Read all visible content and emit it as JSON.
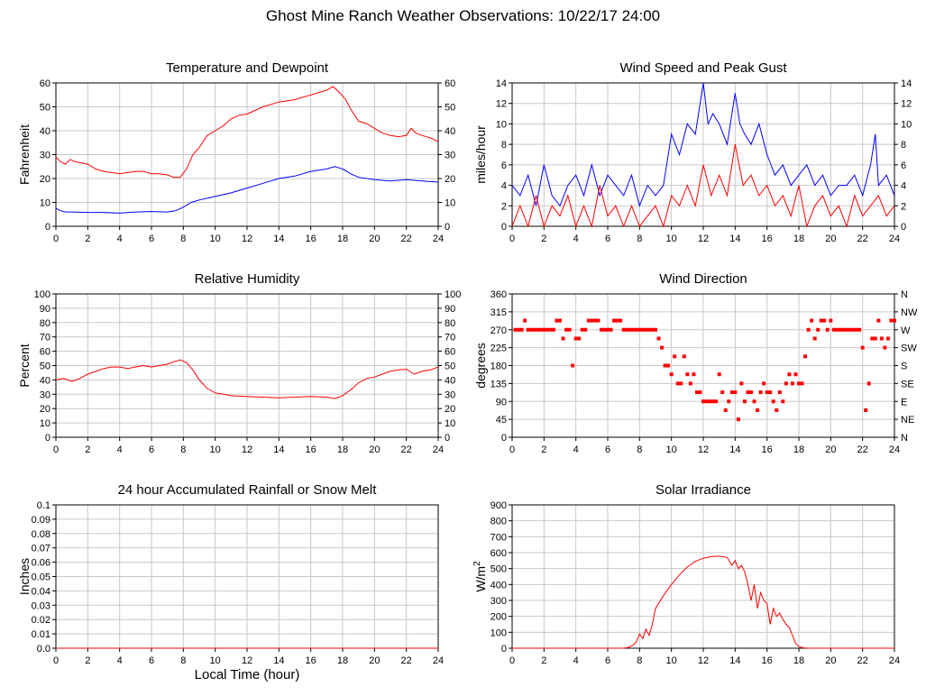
{
  "title": "Ghost Mine Ranch Weather Observations: 10/22/17 24:00",
  "colors": {
    "primary": "#ff0000",
    "secondary": "#0000ff",
    "grid": "#c8c8c8",
    "axis": "#000000"
  },
  "chart_data": [
    {
      "id": "temperature",
      "type": "line",
      "title": "Temperature and Dewpoint",
      "xlabel": "",
      "ylabel": "Fahrenheit",
      "xlim": [
        0,
        24
      ],
      "ylim": [
        0,
        60
      ],
      "xticks": [
        0,
        2,
        4,
        6,
        8,
        10,
        12,
        14,
        16,
        18,
        20,
        22,
        24
      ],
      "yticks": [
        0,
        10,
        20,
        30,
        40,
        50,
        60
      ],
      "yticks_right": [
        0,
        10,
        20,
        30,
        40,
        50,
        60
      ],
      "grid": true,
      "series": [
        {
          "color": "#ff0000",
          "x": [
            0,
            0.3,
            0.6,
            0.9,
            1.2,
            1.6,
            2.0,
            2.5,
            3.0,
            3.5,
            4.0,
            4.5,
            5.0,
            5.5,
            6.0,
            6.5,
            7.0,
            7.4,
            7.8,
            8.2,
            8.6,
            9.0,
            9.5,
            10.0,
            10.5,
            11.0,
            11.5,
            12.0,
            12.5,
            13.0,
            13.5,
            14.0,
            14.5,
            15.0,
            15.5,
            16.0,
            16.5,
            17.0,
            17.4,
            17.8,
            18.2,
            18.6,
            19.0,
            19.5,
            20.0,
            20.5,
            21.0,
            21.5,
            22.0,
            22.3,
            22.6,
            23.0,
            23.5,
            24.0
          ],
          "y": [
            29,
            27,
            26,
            28,
            27,
            26.5,
            26,
            24,
            23,
            22.5,
            22,
            22.5,
            23,
            23,
            22,
            22,
            21.5,
            20.5,
            20.5,
            24,
            30,
            33,
            38,
            40,
            42,
            45,
            46.5,
            47,
            48.5,
            50,
            51,
            52,
            52.5,
            53,
            54,
            55,
            56,
            57,
            58.5,
            56,
            53,
            48,
            44,
            43,
            41,
            39,
            38,
            37.5,
            38,
            41,
            39,
            38,
            37,
            35.5
          ]
        },
        {
          "color": "#0000ff",
          "x": [
            0,
            0.3,
            0.6,
            1.0,
            2.0,
            3.0,
            4.0,
            5.0,
            6.0,
            7.0,
            7.5,
            8.0,
            8.5,
            9.0,
            10.0,
            11.0,
            12.0,
            13.0,
            14.0,
            15.0,
            16.0,
            17.0,
            17.5,
            18.0,
            18.5,
            19.0,
            20.0,
            21.0,
            22.0,
            23.0,
            24.0
          ],
          "y": [
            7.5,
            6.5,
            6,
            6,
            5.8,
            5.8,
            5.5,
            6,
            6.2,
            6,
            6.5,
            8,
            10,
            11,
            12.5,
            14,
            16,
            18,
            20,
            21,
            23,
            24,
            25,
            24,
            22,
            20.5,
            19.5,
            19,
            19.5,
            19,
            18.5
          ]
        }
      ]
    },
    {
      "id": "wind-speed",
      "type": "line",
      "title": "Wind Speed and Peak Gust",
      "xlabel": "",
      "ylabel": "miles/hour",
      "xlim": [
        0,
        24
      ],
      "ylim": [
        0,
        14
      ],
      "xticks": [
        0,
        2,
        4,
        6,
        8,
        10,
        12,
        14,
        16,
        18,
        20,
        22,
        24
      ],
      "yticks": [
        0,
        2,
        4,
        6,
        8,
        10,
        12,
        14
      ],
      "yticks_right": [
        0,
        2,
        4,
        6,
        8,
        10,
        12,
        14
      ],
      "grid": true,
      "series": [
        {
          "color": "#0000ff",
          "x": [
            0,
            0.5,
            1.0,
            1.5,
            2.0,
            2.5,
            3.0,
            3.5,
            4.0,
            4.5,
            5.0,
            5.5,
            6.0,
            6.5,
            7.0,
            7.5,
            8.0,
            8.5,
            9.0,
            9.5,
            10.0,
            10.5,
            11.0,
            11.5,
            12.0,
            12.3,
            12.6,
            13.0,
            13.5,
            14.0,
            14.3,
            14.6,
            15.0,
            15.5,
            16.0,
            16.5,
            17.0,
            17.5,
            18.0,
            18.5,
            19.0,
            19.5,
            20.0,
            20.5,
            21.0,
            21.5,
            22.0,
            22.5,
            22.8,
            23.0,
            23.5,
            24.0
          ],
          "y": [
            4,
            3,
            5,
            2,
            6,
            3,
            2,
            4,
            5,
            3,
            6,
            3,
            5,
            4,
            3,
            5,
            2,
            4,
            3,
            4,
            9,
            7,
            10,
            9,
            14,
            10,
            11,
            10,
            8,
            13,
            10,
            9,
            8,
            10,
            7,
            5,
            6,
            4,
            5,
            6,
            4,
            5,
            3,
            4,
            4,
            5,
            3,
            6,
            9,
            4,
            5,
            3
          ]
        },
        {
          "color": "#ff0000",
          "x": [
            0,
            0.5,
            1.0,
            1.5,
            2.0,
            2.5,
            3.0,
            3.5,
            4.0,
            4.5,
            5.0,
            5.5,
            6.0,
            6.5,
            7.0,
            7.5,
            8.0,
            8.5,
            9.0,
            9.5,
            10.0,
            10.5,
            11.0,
            11.5,
            12.0,
            12.5,
            13.0,
            13.5,
            14.0,
            14.5,
            15.0,
            15.5,
            16.0,
            16.5,
            17.0,
            17.5,
            18.0,
            18.5,
            19.0,
            19.5,
            20.0,
            20.5,
            21.0,
            21.5,
            22.0,
            22.5,
            23.0,
            23.5,
            24.0
          ],
          "y": [
            0,
            2,
            0,
            3,
            0,
            2,
            1,
            3,
            0,
            2,
            0,
            4,
            1,
            2,
            0,
            2,
            0,
            1,
            2,
            0,
            3,
            2,
            4,
            2,
            6,
            3,
            5,
            3,
            8,
            4,
            5,
            3,
            4,
            2,
            3,
            1,
            4,
            0,
            2,
            3,
            1,
            2,
            0,
            3,
            1,
            2,
            3,
            1,
            2
          ]
        }
      ]
    },
    {
      "id": "humidity",
      "type": "line",
      "title": "Relative Humidity",
      "xlabel": "",
      "ylabel": "Percent",
      "xlim": [
        0,
        24
      ],
      "ylim": [
        0,
        100
      ],
      "xticks": [
        0,
        2,
        4,
        6,
        8,
        10,
        12,
        14,
        16,
        18,
        20,
        22,
        24
      ],
      "yticks": [
        0,
        10,
        20,
        30,
        40,
        50,
        60,
        70,
        80,
        90,
        100
      ],
      "yticks_right": [
        0,
        10,
        20,
        30,
        40,
        50,
        60,
        70,
        80,
        90,
        100
      ],
      "grid": true,
      "series": [
        {
          "color": "#ff0000",
          "x": [
            0,
            0.5,
            1.0,
            1.5,
            2.0,
            2.5,
            3.0,
            3.5,
            4.0,
            4.5,
            5.0,
            5.5,
            6.0,
            6.5,
            7.0,
            7.5,
            7.8,
            8.2,
            8.6,
            9.0,
            9.5,
            10.0,
            10.5,
            11.0,
            12.0,
            13.0,
            14.0,
            15.0,
            16.0,
            17.0,
            17.5,
            18.0,
            18.5,
            19.0,
            19.5,
            20.0,
            20.5,
            21.0,
            21.5,
            22.0,
            22.5,
            23.0,
            23.5,
            24.0
          ],
          "y": [
            40,
            41,
            39,
            41,
            44,
            46,
            48,
            49,
            49,
            48,
            49,
            50,
            49,
            50,
            51,
            53,
            54,
            52,
            47,
            40,
            34,
            31,
            30,
            29,
            28.5,
            28,
            27.5,
            28,
            28.5,
            28,
            27,
            29,
            33,
            38,
            41,
            42,
            44,
            46,
            47,
            47.5,
            44,
            46,
            47,
            49
          ]
        }
      ]
    },
    {
      "id": "wind-direction",
      "type": "scatter",
      "title": "Wind Direction",
      "xlabel": "",
      "ylabel": "degrees",
      "xlim": [
        0,
        24
      ],
      "ylim": [
        0,
        360
      ],
      "xticks": [
        0,
        2,
        4,
        6,
        8,
        10,
        12,
        14,
        16,
        18,
        20,
        22,
        24
      ],
      "yticks": [
        0,
        45,
        90,
        135,
        180,
        225,
        270,
        315,
        360
      ],
      "yticks_right": [
        "N",
        "NE",
        "E",
        "SE",
        "S",
        "SW",
        "W",
        "NW",
        "N"
      ],
      "grid": true,
      "series": [
        {
          "color": "#ff0000",
          "x": [
            0.2,
            0.4,
            0.6,
            0.8,
            1.0,
            1.2,
            1.4,
            1.6,
            1.8,
            2.0,
            2.2,
            2.4,
            2.6,
            2.8,
            3.0,
            3.2,
            3.4,
            3.6,
            3.8,
            4.0,
            4.2,
            4.4,
            4.6,
            4.8,
            5.0,
            5.2,
            5.4,
            5.6,
            5.8,
            6.0,
            6.2,
            6.4,
            6.6,
            6.8,
            7.0,
            7.2,
            7.4,
            7.6,
            7.8,
            8.0,
            8.2,
            8.4,
            8.6,
            8.8,
            9.0,
            9.2,
            9.4,
            9.6,
            9.8,
            10.0,
            10.2,
            10.4,
            10.6,
            10.8,
            11.0,
            11.2,
            11.4,
            11.6,
            11.8,
            12.0,
            12.2,
            12.4,
            12.6,
            12.8,
            13.0,
            13.2,
            13.4,
            13.6,
            13.8,
            14.0,
            14.2,
            14.4,
            14.6,
            14.8,
            15.0,
            15.2,
            15.4,
            15.6,
            15.8,
            16.0,
            16.2,
            16.4,
            16.6,
            16.8,
            17.0,
            17.2,
            17.4,
            17.6,
            17.8,
            18.0,
            18.2,
            18.4,
            18.6,
            18.8,
            19.0,
            19.2,
            19.4,
            19.6,
            19.8,
            20.0,
            20.2,
            20.4,
            20.6,
            20.8,
            21.0,
            21.2,
            21.4,
            21.6,
            21.8,
            22.0,
            22.2,
            22.4,
            22.6,
            22.8,
            23.0,
            23.2,
            23.4,
            23.6,
            23.8,
            24.0
          ],
          "y": [
            270,
            270,
            270,
            293,
            270,
            270,
            270,
            270,
            270,
            270,
            270,
            270,
            270,
            293,
            293,
            248,
            270,
            270,
            180,
            248,
            248,
            270,
            270,
            293,
            293,
            293,
            293,
            270,
            270,
            270,
            270,
            293,
            293,
            293,
            270,
            270,
            270,
            270,
            270,
            270,
            270,
            270,
            270,
            270,
            270,
            248,
            225,
            180,
            180,
            158,
            203,
            135,
            135,
            203,
            158,
            135,
            158,
            113,
            113,
            90,
            90,
            90,
            90,
            90,
            158,
            113,
            68,
            90,
            113,
            113,
            45,
            135,
            90,
            113,
            113,
            90,
            68,
            113,
            135,
            113,
            113,
            90,
            68,
            113,
            90,
            135,
            158,
            135,
            158,
            135,
            135,
            203,
            270,
            293,
            248,
            270,
            293,
            293,
            270,
            293,
            270,
            270,
            270,
            270,
            270,
            270,
            270,
            270,
            270,
            225,
            68,
            135,
            248,
            248,
            293,
            248,
            225,
            248,
            293,
            293
          ]
        }
      ]
    },
    {
      "id": "rainfall",
      "type": "line",
      "title": "24 hour Accumulated Rainfall or Snow Melt",
      "xlabel": "Local Time (hour)",
      "ylabel": "Inches",
      "xlim": [
        0,
        24
      ],
      "ylim": [
        0,
        0.1
      ],
      "xticks": [
        0,
        2,
        4,
        6,
        8,
        10,
        12,
        14,
        16,
        18,
        20,
        22,
        24
      ],
      "yticks": [
        "0.0",
        "0.01",
        "0.02",
        "0.03",
        "0.04",
        "0.05",
        "0.06",
        "0.07",
        "0.08",
        "0.09",
        "0.1"
      ],
      "grid": true,
      "series": [
        {
          "color": "#ff0000",
          "x": [
            0,
            24
          ],
          "y": [
            0,
            0
          ]
        }
      ]
    },
    {
      "id": "solar",
      "type": "line",
      "title": "Solar Irradiance",
      "xlabel": "",
      "ylabel": "W/m",
      "ylabel_superscript": "2",
      "xlim": [
        0,
        24
      ],
      "ylim": [
        0,
        900
      ],
      "xticks": [
        0,
        2,
        4,
        6,
        8,
        10,
        12,
        14,
        16,
        18,
        20,
        22,
        24
      ],
      "yticks": [
        0,
        100,
        200,
        300,
        400,
        500,
        600,
        700,
        800,
        900
      ],
      "grid": true,
      "series": [
        {
          "color": "#ff0000",
          "x": [
            0,
            6.0,
            7.0,
            7.3,
            7.6,
            7.8,
            8.0,
            8.2,
            8.4,
            8.6,
            8.8,
            9.0,
            9.5,
            10.0,
            10.5,
            11.0,
            11.5,
            12.0,
            12.5,
            13.0,
            13.5,
            13.8,
            14.0,
            14.2,
            14.4,
            14.6,
            14.8,
            15.0,
            15.2,
            15.4,
            15.6,
            15.8,
            16.0,
            16.2,
            16.4,
            16.6,
            16.8,
            17.0,
            17.2,
            17.4,
            17.6,
            17.8,
            18.0,
            18.3,
            18.6,
            19.0,
            24.0
          ],
          "y": [
            0,
            0,
            0,
            5,
            20,
            40,
            90,
            60,
            120,
            80,
            150,
            250,
            330,
            400,
            460,
            510,
            545,
            565,
            575,
            578,
            570,
            520,
            550,
            500,
            520,
            480,
            400,
            300,
            400,
            250,
            350,
            300,
            280,
            150,
            250,
            200,
            220,
            180,
            150,
            130,
            80,
            30,
            10,
            2,
            0,
            0,
            0
          ]
        }
      ]
    }
  ]
}
